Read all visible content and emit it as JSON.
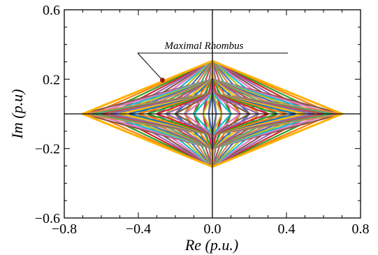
{
  "chart_data": {
    "type": "line",
    "xlabel": "Re (p.u.)",
    "ylabel": "Im (p.u)",
    "xlim": [
      -0.8,
      0.8
    ],
    "ylim": [
      -0.6,
      0.6
    ],
    "x_ticks": [
      -0.8,
      -0.4,
      0.0,
      0.4,
      0.8
    ],
    "x_tick_labels": [
      "−0.8",
      "−0.4",
      "0.0",
      "0.4",
      "0.8"
    ],
    "y_ticks": [
      -0.6,
      -0.2,
      0.2,
      0.6
    ],
    "y_tick_labels": [
      "−0.6",
      "−0.2",
      "0.2",
      "0.6"
    ],
    "grid": false,
    "annotation": {
      "text": "Maximal Rhombus",
      "point": [
        -0.27,
        0.195
      ]
    },
    "rhombus_family": {
      "real_vertices": [
        0.7,
        0.65,
        0.6,
        0.55,
        0.5,
        0.45,
        0.4,
        0.35,
        0.3,
        0.25,
        0.2,
        0.15,
        0.1,
        0.05,
        0.02
      ],
      "imag_vertices": [
        0.305,
        0.2,
        0.12
      ],
      "colors": [
        "#1f77b4",
        "#ff7f0e",
        "#2ca02c",
        "#d62728",
        "#9467bd",
        "#8c564b",
        "#e377c2",
        "#17becf",
        "#bcbd22",
        "#4c72b0",
        "#dd8452",
        "#55a868",
        "#c44e52",
        "#8172b2",
        "#ffbf00"
      ]
    },
    "maximal_rhombus": {
      "real_vertex": 0.7,
      "imag_vertex": 0.305,
      "color": "#ffb000"
    }
  }
}
